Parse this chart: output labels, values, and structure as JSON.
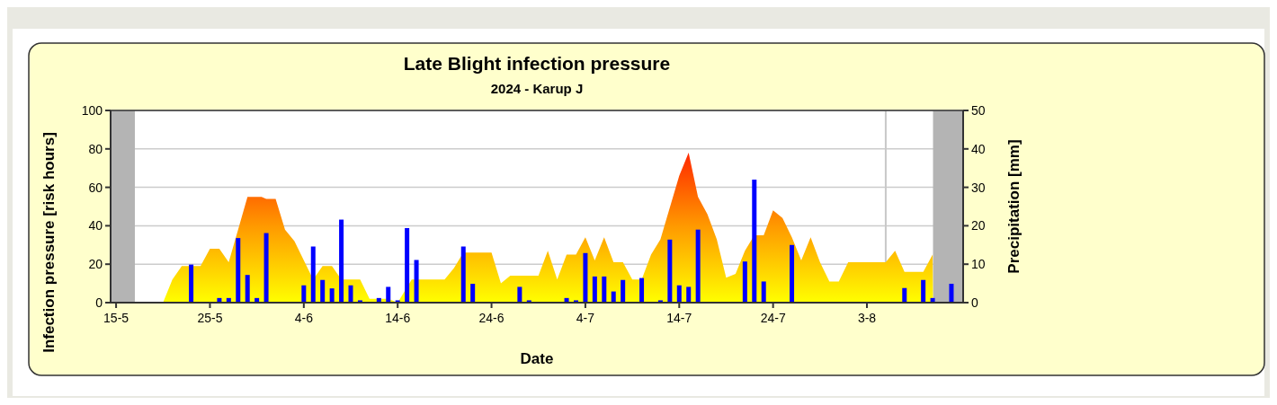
{
  "chart_data": {
    "type": "area",
    "title": "Late Blight infection pressure",
    "subtitle": "2024 - Karup J",
    "xlabel": "Date",
    "ylabel": "Infection pressure [risk hours]",
    "y2label": "Precipitation [mm]",
    "xlim": [
      "2024-05-14T10:00",
      "2024-08-13T06:00"
    ],
    "xticks": [
      {
        "value": "2024-05-15",
        "label": "15-5"
      },
      {
        "value": "2024-05-25",
        "label": "25-5"
      },
      {
        "value": "2024-06-04",
        "label": "4-6"
      },
      {
        "value": "2024-06-14",
        "label": "14-6"
      },
      {
        "value": "2024-06-24",
        "label": "24-6"
      },
      {
        "value": "2024-07-04",
        "label": "4-7"
      },
      {
        "value": "2024-07-14",
        "label": "14-7"
      },
      {
        "value": "2024-07-24",
        "label": "24-7"
      },
      {
        "value": "2024-08-03",
        "label": "3-8"
      }
    ],
    "ylim": [
      0,
      100
    ],
    "yticks": [
      0,
      20,
      40,
      60,
      80,
      100
    ],
    "y2lim": [
      0,
      50
    ],
    "y2ticks": [
      0,
      10,
      20,
      30,
      40,
      50
    ],
    "grid": "y",
    "bands": [
      {
        "axis": "x",
        "from": "2024-05-14T10:00",
        "to": "2024-05-17",
        "color": "#b4b4b4"
      },
      {
        "axis": "x",
        "from": "2024-08-10T01:00",
        "to": "2024-08-13T06:00",
        "color": "#b4b4b4"
      }
    ],
    "ref_lines": [
      {
        "axis": "x",
        "value": "2024-08-05",
        "color": "#c8c8c8"
      }
    ],
    "series": [
      {
        "color": "#ff9900",
        "x": [
          "2024-05-20",
          "2024-05-21",
          "2024-05-22",
          "2024-05-24",
          "2024-05-25",
          "2024-05-26",
          "2024-05-27",
          "2024-05-28",
          "2024-05-29",
          "2024-05-30T12:00",
          "2024-05-31",
          "2024-06-01",
          "2024-06-02",
          "2024-06-03",
          "2024-06-05",
          "2024-06-06",
          "2024-06-07",
          "2024-06-08",
          "2024-06-10",
          "2024-06-11",
          "2024-06-13",
          "2024-06-14",
          "2024-06-15T12:00",
          "2024-06-19",
          "2024-06-20",
          "2024-06-21",
          "2024-06-24",
          "2024-06-25",
          "2024-06-26",
          "2024-06-29",
          "2024-06-30",
          "2024-07-01",
          "2024-07-02",
          "2024-07-03",
          "2024-07-04",
          "2024-07-05",
          "2024-07-06",
          "2024-07-07",
          "2024-07-08",
          "2024-07-09",
          "2024-07-10",
          "2024-07-11",
          "2024-07-12",
          "2024-07-14",
          "2024-07-15",
          "2024-07-16",
          "2024-07-17",
          "2024-07-18",
          "2024-07-19",
          "2024-07-20",
          "2024-07-21",
          "2024-07-22",
          "2024-07-23",
          "2024-07-24",
          "2024-07-25",
          "2024-07-26",
          "2024-07-27",
          "2024-07-28",
          "2024-07-29",
          "2024-07-30",
          "2024-07-31",
          "2024-08-01",
          "2024-08-05",
          "2024-08-06",
          "2024-08-07",
          "2024-08-09",
          "2024-08-10",
          "2024-08-10T01:00"
        ],
        "values": [
          0,
          12,
          19,
          19,
          28,
          28,
          21,
          38,
          55,
          55,
          54,
          54,
          38,
          32,
          12,
          19,
          19,
          12,
          12,
          2,
          2,
          0,
          12,
          12,
          18,
          26,
          26,
          10,
          14,
          14,
          27,
          12,
          25,
          25,
          34,
          22,
          34,
          21,
          21,
          12,
          12,
          25,
          33,
          66,
          78,
          55,
          46,
          33,
          13,
          15,
          27,
          35,
          35,
          48,
          44,
          34,
          22,
          34,
          21,
          11,
          11,
          21,
          21,
          27,
          16,
          16,
          25,
          0
        ]
      },
      {
        "type": "bar",
        "axis": "y2",
        "color": "#0000ff",
        "x": [
          "2024-05-23",
          "2024-05-26",
          "2024-05-27",
          "2024-05-28",
          "2024-05-29",
          "2024-05-30",
          "2024-05-31",
          "2024-06-04",
          "2024-06-05",
          "2024-06-06",
          "2024-06-07",
          "2024-06-08",
          "2024-06-09",
          "2024-06-10",
          "2024-06-12",
          "2024-06-13",
          "2024-06-14",
          "2024-06-15",
          "2024-06-16",
          "2024-06-21",
          "2024-06-22",
          "2024-06-27",
          "2024-06-28",
          "2024-07-02",
          "2024-07-03",
          "2024-07-04",
          "2024-07-05",
          "2024-07-06",
          "2024-07-07",
          "2024-07-08",
          "2024-07-10",
          "2024-07-12",
          "2024-07-13",
          "2024-07-14",
          "2024-07-15",
          "2024-07-16",
          "2024-07-21",
          "2024-07-22",
          "2024-07-23",
          "2024-07-26",
          "2024-08-07",
          "2024-08-09",
          "2024-08-10",
          "2024-08-12"
        ],
        "values": [
          9.9,
          1.2,
          1.2,
          16.8,
          7.2,
          1.2,
          18.1,
          4.5,
          14.6,
          5.9,
          3.7,
          21.6,
          4.5,
          0.6,
          1.2,
          4.1,
          0.6,
          19.4,
          11.1,
          14.6,
          4.9,
          4.1,
          0.6,
          1.2,
          0.6,
          12.9,
          6.8,
          6.8,
          2.9,
          5.9,
          6.4,
          0.6,
          16.4,
          4.5,
          4.1,
          19,
          10.7,
          32,
          5.5,
          15,
          3.8,
          5.9,
          1.2,
          4.9
        ]
      }
    ]
  }
}
